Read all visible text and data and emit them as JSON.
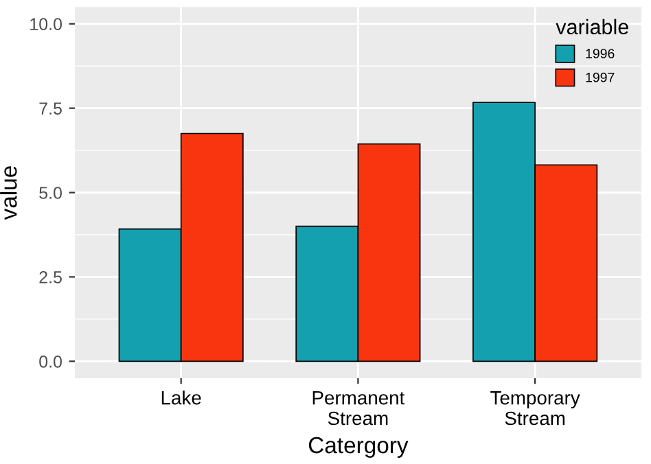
{
  "chart_data": {
    "type": "bar",
    "xlabel": "Catergory",
    "ylabel": "value",
    "legend_title": "variable",
    "categories": [
      "Lake",
      "Permanent\nStream",
      "Temporary\nStream"
    ],
    "series": [
      {
        "name": "1996",
        "color": "#14a0ae",
        "values": [
          3.92,
          4.0,
          7.67
        ]
      },
      {
        "name": "1997",
        "color": "#f8350f",
        "values": [
          6.75,
          6.44,
          5.82
        ]
      }
    ],
    "ylim": [
      -0.5,
      10.5
    ],
    "yticks": [
      {
        "value": 0,
        "label": "0.0"
      },
      {
        "value": 2.5,
        "label": "2.5"
      },
      {
        "value": 5,
        "label": "5.0"
      },
      {
        "value": 7.5,
        "label": "7.5"
      },
      {
        "value": 10,
        "label": "10.0"
      }
    ],
    "grid": true,
    "legend": "top right"
  }
}
